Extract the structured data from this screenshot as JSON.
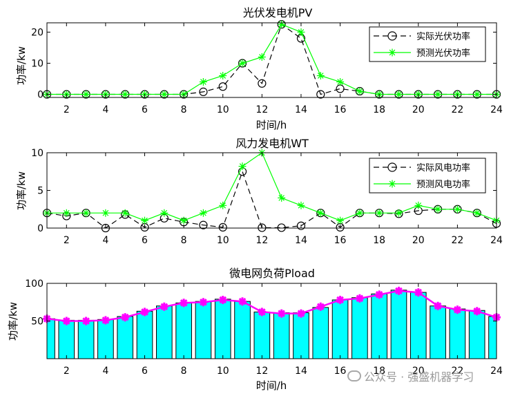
{
  "watermark": "公众号 · 强盛机器学习",
  "chart_data": [
    {
      "type": "line",
      "title": "光伏发电机PV",
      "xlabel": "时间/h",
      "ylabel": "功率/kw",
      "xlim": [
        1,
        24
      ],
      "ylim": [
        -1,
        23
      ],
      "xticks": [
        2,
        4,
        6,
        8,
        10,
        12,
        14,
        16,
        18,
        20,
        22,
        24
      ],
      "yticks": [
        0,
        10,
        20
      ],
      "legend_position": "top-right",
      "x": [
        1,
        2,
        3,
        4,
        5,
        6,
        7,
        8,
        9,
        10,
        11,
        12,
        13,
        14,
        15,
        16,
        17,
        18,
        19,
        20,
        21,
        22,
        23,
        24
      ],
      "series": [
        {
          "name": "实际光伏功率",
          "color": "#000000",
          "style": "dashed",
          "marker": "circle",
          "values": [
            0,
            0,
            0,
            0,
            0,
            0,
            0,
            0,
            0.8,
            2.5,
            10,
            3.5,
            22.5,
            18,
            0,
            1.8,
            1,
            0,
            0,
            0,
            0,
            0,
            0,
            0
          ]
        },
        {
          "name": "预测光伏功率",
          "color": "#00ff00",
          "style": "solid",
          "marker": "star",
          "values": [
            0,
            0,
            0,
            0,
            0,
            0,
            0,
            0,
            4,
            6,
            10,
            12,
            22.5,
            20,
            6,
            4,
            1,
            0,
            0,
            0,
            0,
            0,
            0,
            0
          ]
        }
      ]
    },
    {
      "type": "line",
      "title": "风力发电机WT",
      "xlabel": "",
      "ylabel": "功率/kw",
      "xlim": [
        1,
        24
      ],
      "ylim": [
        0,
        10
      ],
      "xticks": [
        2,
        4,
        6,
        8,
        10,
        12,
        14,
        16,
        18,
        20,
        22,
        24
      ],
      "yticks": [
        0,
        5,
        10
      ],
      "legend_position": "top-right",
      "x": [
        1,
        2,
        3,
        4,
        5,
        6,
        7,
        8,
        9,
        10,
        11,
        12,
        13,
        14,
        15,
        16,
        17,
        18,
        19,
        20,
        21,
        22,
        23,
        24
      ],
      "series": [
        {
          "name": "实际风电功率",
          "color": "#000000",
          "style": "dashed",
          "marker": "circle",
          "values": [
            2,
            1.6,
            2,
            0,
            1.8,
            0.1,
            1.3,
            0.8,
            0.4,
            0.1,
            7.5,
            0.05,
            0.05,
            0.3,
            2,
            0.1,
            2,
            2,
            1.9,
            2.3,
            2.5,
            2.5,
            2,
            0.6
          ]
        },
        {
          "name": "预测风电功率",
          "color": "#00ff00",
          "style": "solid",
          "marker": "star",
          "values": [
            2,
            2,
            2,
            2,
            2,
            1,
            2,
            1,
            2,
            3,
            8.2,
            10,
            4,
            3,
            2,
            1,
            2,
            2,
            2,
            3,
            2.5,
            2.5,
            2,
            1
          ]
        }
      ]
    },
    {
      "type": "bar",
      "title": "微电网负荷Pload",
      "xlabel": "时间/h",
      "ylabel": "功率/kw",
      "xlim": [
        1,
        24
      ],
      "ylim": [
        0,
        100
      ],
      "xticks": [
        2,
        4,
        6,
        8,
        10,
        12,
        14,
        16,
        18,
        20,
        22,
        24
      ],
      "yticks": [
        50,
        100
      ],
      "x": [
        1,
        2,
        3,
        4,
        5,
        6,
        7,
        8,
        9,
        10,
        11,
        12,
        13,
        14,
        15,
        16,
        17,
        18,
        19,
        20,
        21,
        22,
        23,
        24
      ],
      "bar_color": "#00ffff",
      "line_color": "#ff00ff",
      "values": [
        53,
        51,
        51,
        52,
        56,
        63,
        70,
        74,
        76,
        79,
        76,
        62,
        61,
        61,
        68,
        78,
        81,
        86,
        91,
        88,
        70,
        66,
        64,
        56
      ],
      "line_values": [
        53,
        50,
        50,
        51,
        55,
        62,
        69,
        74,
        75,
        78,
        76,
        62,
        60,
        60,
        69,
        78,
        80,
        85,
        90,
        88,
        70,
        65,
        63,
        55
      ]
    }
  ]
}
